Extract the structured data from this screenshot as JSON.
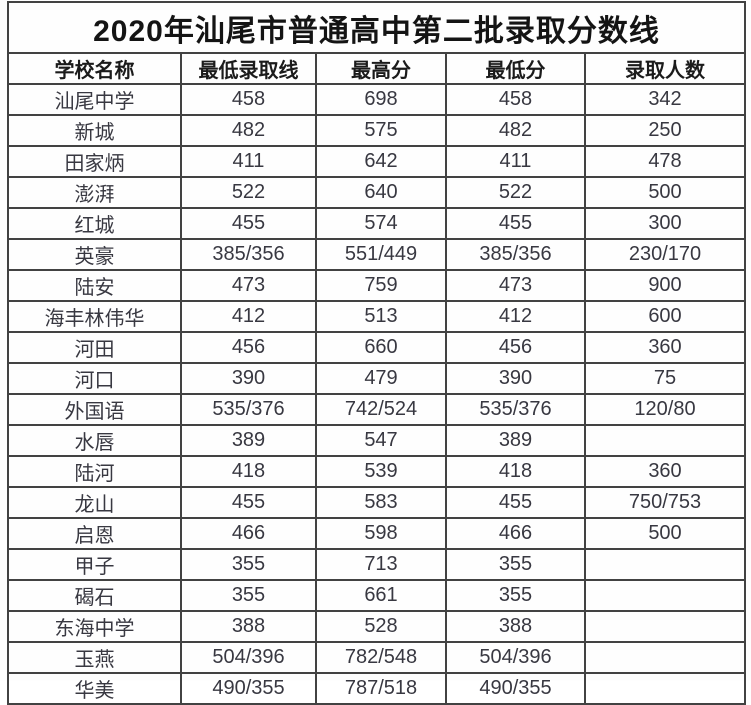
{
  "page": {
    "background_color": "#ffffff",
    "border_color": "#424242",
    "title_color": "#141414",
    "text_color": "#383841"
  },
  "chart_data": {
    "type": "table",
    "title": "2020年汕尾市普通高中第二批录取分数线",
    "columns": [
      "学校名称",
      "最低录取线",
      "最高分",
      "最低分",
      "录取人数"
    ],
    "rows": [
      [
        "汕尾中学",
        "458",
        "698",
        "458",
        "342"
      ],
      [
        "新城",
        "482",
        "575",
        "482",
        "250"
      ],
      [
        "田家炳",
        "411",
        "642",
        "411",
        "478"
      ],
      [
        "澎湃",
        "522",
        "640",
        "522",
        "500"
      ],
      [
        "红城",
        "455",
        "574",
        "455",
        "300"
      ],
      [
        "英豪",
        "385/356",
        "551/449",
        "385/356",
        "230/170"
      ],
      [
        "陆安",
        "473",
        "759",
        "473",
        "900"
      ],
      [
        "海丰林伟华",
        "412",
        "513",
        "412",
        "600"
      ],
      [
        "河田",
        "456",
        "660",
        "456",
        "360"
      ],
      [
        "河口",
        "390",
        "479",
        "390",
        "75"
      ],
      [
        "外国语",
        "535/376",
        "742/524",
        "535/376",
        "120/80"
      ],
      [
        "水唇",
        "389",
        "547",
        "389",
        ""
      ],
      [
        "陆河",
        "418",
        "539",
        "418",
        "360"
      ],
      [
        "龙山",
        "455",
        "583",
        "455",
        "750/753"
      ],
      [
        "启恩",
        "466",
        "598",
        "466",
        "500"
      ],
      [
        "甲子",
        "355",
        "713",
        "355",
        ""
      ],
      [
        "碣石",
        "355",
        "661",
        "355",
        ""
      ],
      [
        "东海中学",
        "388",
        "528",
        "388",
        ""
      ],
      [
        "玉燕",
        "504/396",
        "782/548",
        "504/396",
        ""
      ],
      [
        "华美",
        "490/355",
        "787/518",
        "490/355",
        ""
      ]
    ]
  }
}
